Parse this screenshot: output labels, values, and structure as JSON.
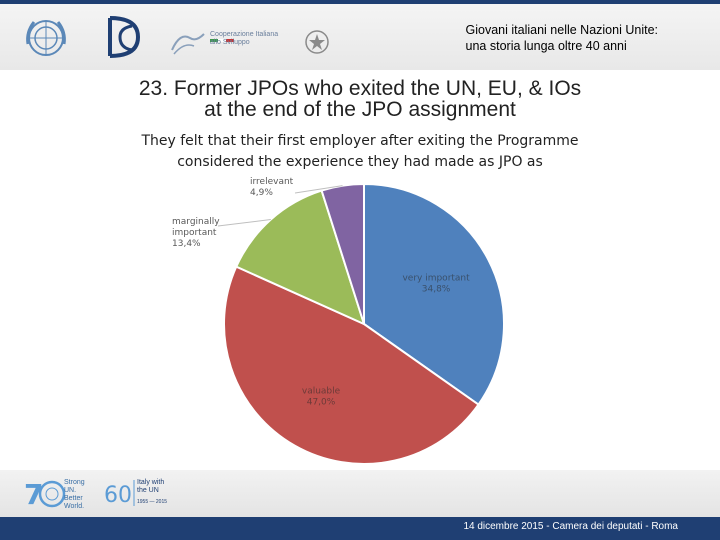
{
  "header": {
    "title_line1": "Giovani italiani nelle Nazioni Unite:",
    "title_line2": "una storia lunga oltre 40 anni",
    "coop_logo_text": [
      "Cooperazione Italiana",
      "allo Sviluppo"
    ]
  },
  "slide": {
    "title_line1": "23. Former JPOs who exited the UN, EU, & IOs",
    "title_line2": "at the end of the JPO assignment",
    "subtitle_line1": "They felt that their first employer after exiting the Programme",
    "subtitle_line2": "considered the experience they had made as JPO as"
  },
  "chart_data": {
    "type": "pie",
    "title": "",
    "slices": [
      {
        "label": "very important",
        "value": 34.8,
        "display": "34,8%",
        "color": "#4f81bd"
      },
      {
        "label": "valuable",
        "value": 47.0,
        "display": "47,0%",
        "color": "#c0504d"
      },
      {
        "label": "marginally important",
        "label_lines": [
          "marginally",
          "important"
        ],
        "value": 13.4,
        "display": "13,4%",
        "color": "#9bbb59"
      },
      {
        "label": "irrelevant",
        "value": 4.9,
        "display": "4,9%",
        "color": "#8064a2"
      }
    ],
    "legend": "none",
    "data_labels": "on-slice or outside with leader lines"
  },
  "footer": {
    "text": "14 dicembre 2015 - Camera dei deputati - Roma",
    "logo70_text": [
      "Strong",
      "UN.",
      "Better",
      "World."
    ],
    "logo60_text": [
      "Italy with",
      "the UN"
    ],
    "logo60_years": "1955 — 2015"
  }
}
